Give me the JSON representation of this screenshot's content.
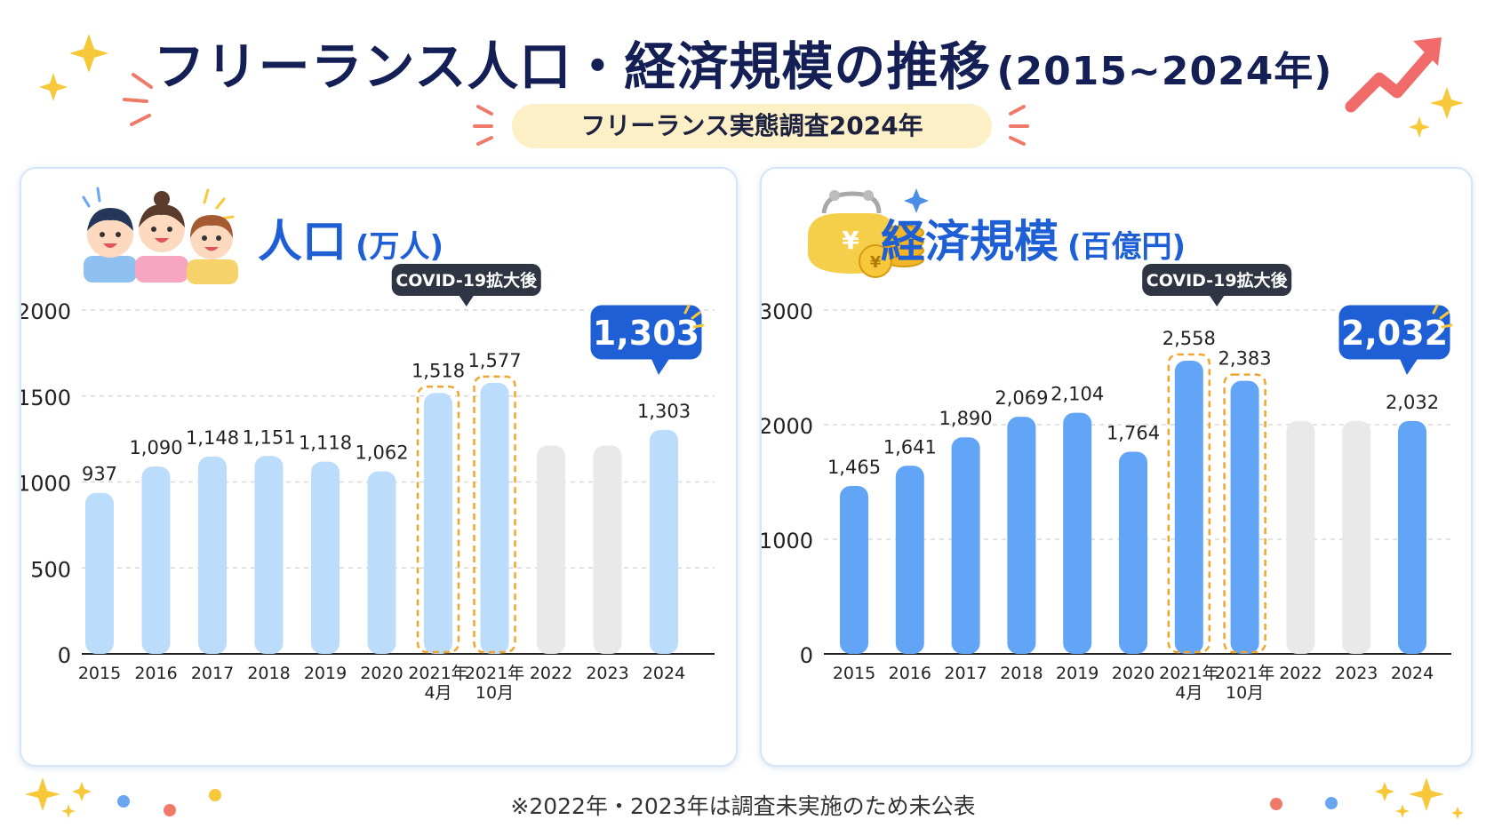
{
  "header": {
    "title": "フリーランス人口・経済規模の推移",
    "title_years": "(2015~2024年)",
    "subtitle": "フリーランス実態調査2024年"
  },
  "footnote": "※2022年・2023年は調査未実施のため未公表",
  "colors": {
    "title": "#142055",
    "accent": "#1f5fd6",
    "bar_pop": "#bcdcfb",
    "bar_econ": "#62a5f6",
    "bar_missing": "#e9e9e9",
    "highlight": "#f0a530",
    "callout": "#1f5fd6"
  },
  "chart_data": [
    {
      "type": "bar",
      "panel_title": "人口",
      "panel_unit": "(万人)",
      "categories": [
        "2015",
        "2016",
        "2017",
        "2018",
        "2019",
        "2020",
        "2021年\n4月",
        "2021年\n10月",
        "2022",
        "2023",
        "2024"
      ],
      "values": [
        937,
        1090,
        1148,
        1151,
        1118,
        1062,
        1518,
        1577,
        null,
        null,
        1303
      ],
      "value_labels": [
        "937",
        "1,090",
        "1,148",
        "1,151",
        "1,118",
        "1,062",
        "1,518",
        "1,577",
        "",
        "",
        "1,303"
      ],
      "ylim": [
        0,
        2000
      ],
      "yticks": [
        0,
        500,
        1000,
        1500,
        2000
      ],
      "highlight_indices": [
        6,
        7
      ],
      "covid_label": "COVID-19拡大後",
      "callout_value": "1,303",
      "grid": true
    },
    {
      "type": "bar",
      "panel_title": "経済規模",
      "panel_unit": "(百億円)",
      "categories": [
        "2015",
        "2016",
        "2017",
        "2018",
        "2019",
        "2020",
        "2021年\n4月",
        "2021年\n10月",
        "2022",
        "2023",
        "2024"
      ],
      "values": [
        1465,
        1641,
        1890,
        2069,
        2104,
        1764,
        2558,
        2383,
        null,
        null,
        2032
      ],
      "value_labels": [
        "1,465",
        "1,641",
        "1,890",
        "2,069",
        "2,104",
        "1,764",
        "2,558",
        "2,383",
        "",
        "",
        "2,032"
      ],
      "ylim": [
        0,
        3000
      ],
      "yticks": [
        0,
        1000,
        2000,
        3000
      ],
      "highlight_indices": [
        6,
        7
      ],
      "covid_label": "COVID-19拡大後",
      "callout_value": "2,032",
      "grid": true
    }
  ]
}
